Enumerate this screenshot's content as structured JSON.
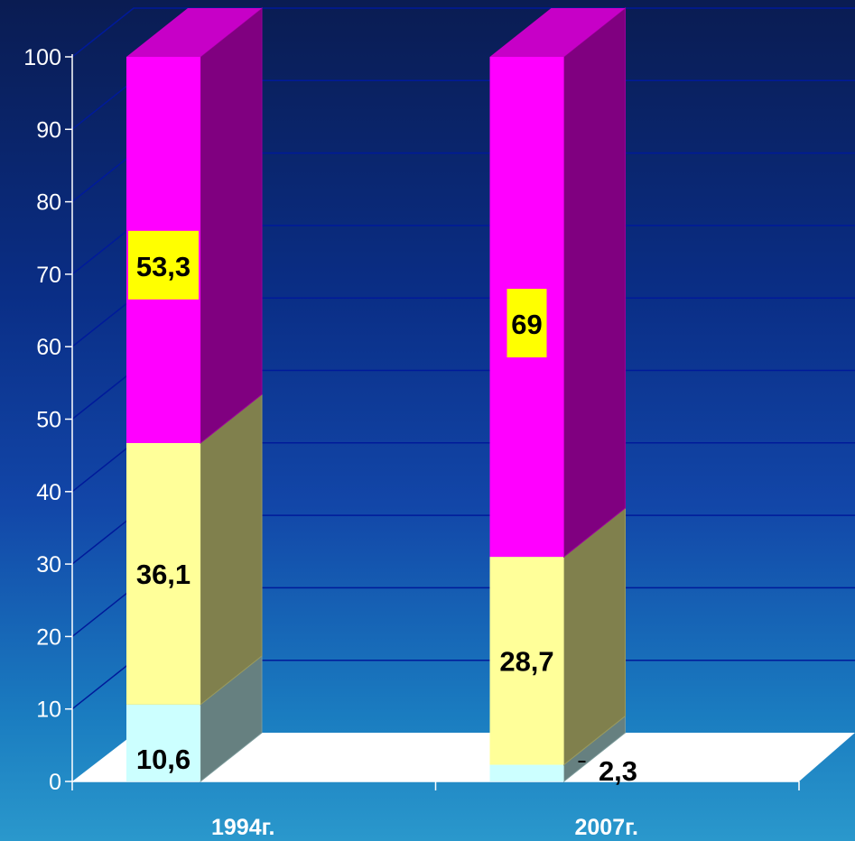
{
  "chart_data": {
    "type": "bar",
    "stacked": true,
    "three_d": true,
    "categories": [
      "1994г.",
      "2007г."
    ],
    "series": [
      {
        "values": [
          10.6,
          2.3
        ],
        "color": "#ccffff",
        "labels": [
          "10,6",
          "2,3"
        ]
      },
      {
        "values": [
          36.1,
          28.7
        ],
        "color": "#ffff99",
        "labels": [
          "36,1",
          "28,7"
        ]
      },
      {
        "values": [
          53.3,
          69
        ],
        "color": "#ff00ff",
        "labels": [
          "53,3",
          "69"
        ],
        "label_background": "#ffff00"
      }
    ],
    "y_ticks": [
      "0",
      "10",
      "20",
      "30",
      "40",
      "50",
      "60",
      "70",
      "80",
      "90",
      "100"
    ],
    "ylim": [
      0,
      100
    ],
    "grid": true,
    "legend": "none"
  }
}
